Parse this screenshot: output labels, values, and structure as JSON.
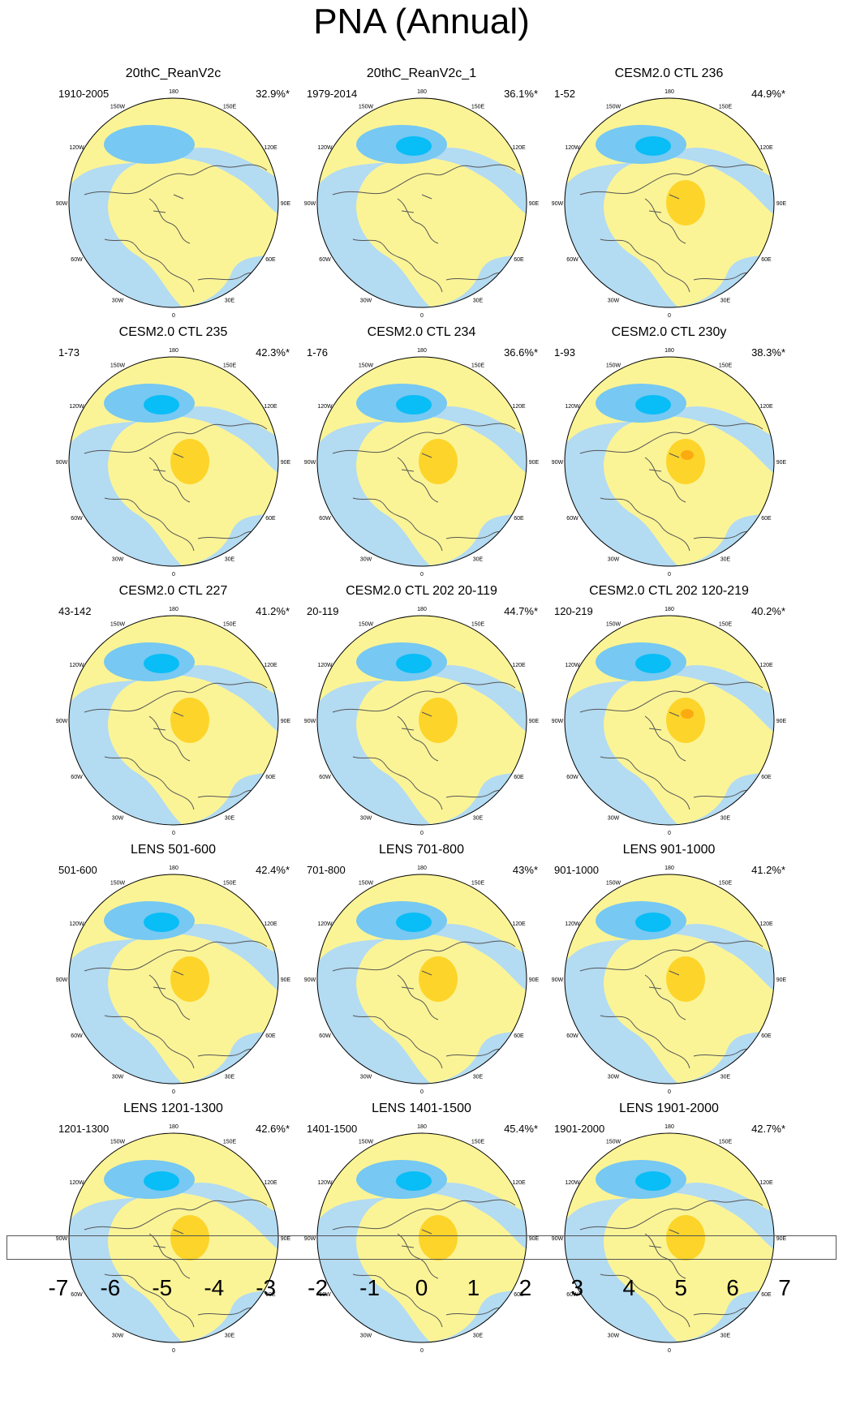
{
  "title": "PNA (Annual)",
  "colors": {
    "ocean_neg1": "#b3dbf2",
    "land_pos1": "#fbf496",
    "neg2": "#77c8f2",
    "neg3": "#09bdf6",
    "pos2": "#fdd42a",
    "pos3": "#fcaa12",
    "coast": "#555555"
  },
  "ticks": [
    "180",
    "150W",
    "120W",
    "90W",
    "60W",
    "30W",
    "0",
    "30E",
    "60E",
    "90E",
    "120E",
    "150E"
  ],
  "panels": [
    {
      "title": "20thC_ReanV2c",
      "range": "1910-2005",
      "pct": "32.9%*"
    },
    {
      "title": "20thC_ReanV2c_1",
      "range": "1979-2014",
      "pct": "36.1%*"
    },
    {
      "title": "CESM2.0 CTL 236",
      "range": "1-52",
      "pct": "44.9%*"
    },
    {
      "title": "CESM2.0 CTL 235",
      "range": "1-73",
      "pct": "42.3%*"
    },
    {
      "title": "CESM2.0 CTL 234",
      "range": "1-76",
      "pct": "36.6%*"
    },
    {
      "title": "CESM2.0 CTL 230y",
      "range": "1-93",
      "pct": "38.3%*"
    },
    {
      "title": "CESM2.0 CTL 227",
      "range": "43-142",
      "pct": "41.2%*"
    },
    {
      "title": "CESM2.0 CTL 202 20-119",
      "range": "20-119",
      "pct": "44.7%*"
    },
    {
      "title": "CESM2.0 CTL 202 120-219",
      "range": "120-219",
      "pct": "40.2%*"
    },
    {
      "title": "LENS 501-600",
      "range": "501-600",
      "pct": "42.4%*"
    },
    {
      "title": "LENS 701-800",
      "range": "701-800",
      "pct": "43%*"
    },
    {
      "title": "LENS 901-1000",
      "range": "901-1000",
      "pct": "41.2%*"
    },
    {
      "title": "LENS 1201-1300",
      "range": "1201-1300",
      "pct": "42.6%*"
    },
    {
      "title": "LENS 1401-1500",
      "range": "1401-1500",
      "pct": "45.4%*"
    },
    {
      "title": "LENS 1901-2000",
      "range": "1901-2000",
      "pct": "42.7%*"
    }
  ],
  "colorbar": {
    "labels": [
      "-7",
      "-6",
      "-5",
      "-4",
      "-3",
      "-2",
      "-1",
      "0",
      "1",
      "2",
      "3",
      "4",
      "5",
      "6",
      "7"
    ],
    "colors": [
      "#8a2be2",
      "#1414ff",
      "#2a4df0",
      "#3a78ee",
      "#1e99f7",
      "#09bdf6",
      "#77c8f2",
      "#b3dbf2",
      "#fbf496",
      "#fdd42a",
      "#fcaa12",
      "#fa7410",
      "#fd3a0a",
      "#ea0303",
      "#cc1b1b",
      "#fdb5b5"
    ]
  }
}
